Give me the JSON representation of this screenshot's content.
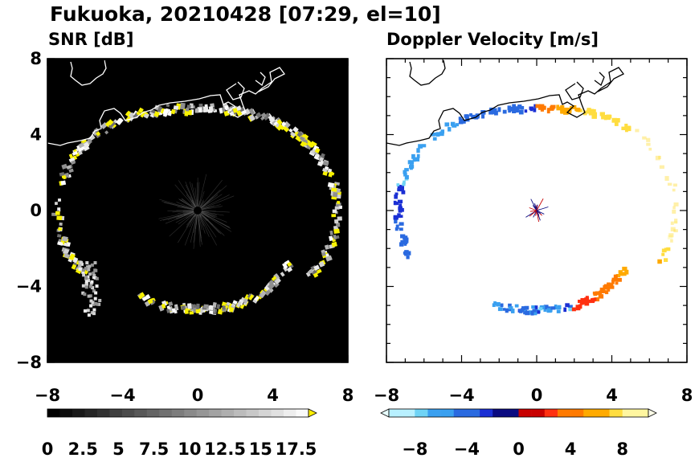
{
  "title": "Fukuoka, 20210428 [07:29, el=10]",
  "panels": [
    {
      "title": "SNR [dB]",
      "x_ticks": [
        "−8",
        "−4",
        "0",
        "4",
        "8"
      ],
      "y_ticks": [
        "8",
        "4",
        "0",
        "−4",
        "−8"
      ],
      "colorbar_labels": [
        "0",
        "2.5",
        "5",
        "7.5",
        "10",
        "12.5",
        "15",
        "17.5"
      ]
    },
    {
      "title": "Doppler Velocity [m/s]",
      "x_ticks": [
        "−8",
        "−4",
        "0",
        "4",
        "8"
      ],
      "colorbar_labels": [
        "−8",
        "−4",
        "0",
        "4",
        "8"
      ]
    }
  ],
  "colors": {
    "snr_background": "#000000",
    "coastline_snr": "#ffffff",
    "coastline_doppler": "#000000",
    "snr_high": "#ffee00",
    "doppler_negative": "#1a2fd4",
    "doppler_positive": "#ff7a00"
  },
  "chart_data": [
    {
      "type": "heatmap",
      "title": "SNR [dB]",
      "xlim": [
        -8,
        8
      ],
      "ylim": [
        -8,
        8
      ],
      "colorbar_range": [
        0,
        17.5
      ],
      "colorbar_extend": "max",
      "colorbar_steps": 21,
      "ring": {
        "center": [
          0,
          0
        ],
        "radius_east": 7.4,
        "radius_north": 5.4
      }
    },
    {
      "type": "heatmap",
      "title": "Doppler Velocity [m/s]",
      "xlim": [
        -8,
        8
      ],
      "ylim": [
        -8,
        8
      ],
      "colorbar_range": [
        -10,
        10
      ],
      "colorbar_extend": "both",
      "colorbar_steps": 20
    }
  ]
}
